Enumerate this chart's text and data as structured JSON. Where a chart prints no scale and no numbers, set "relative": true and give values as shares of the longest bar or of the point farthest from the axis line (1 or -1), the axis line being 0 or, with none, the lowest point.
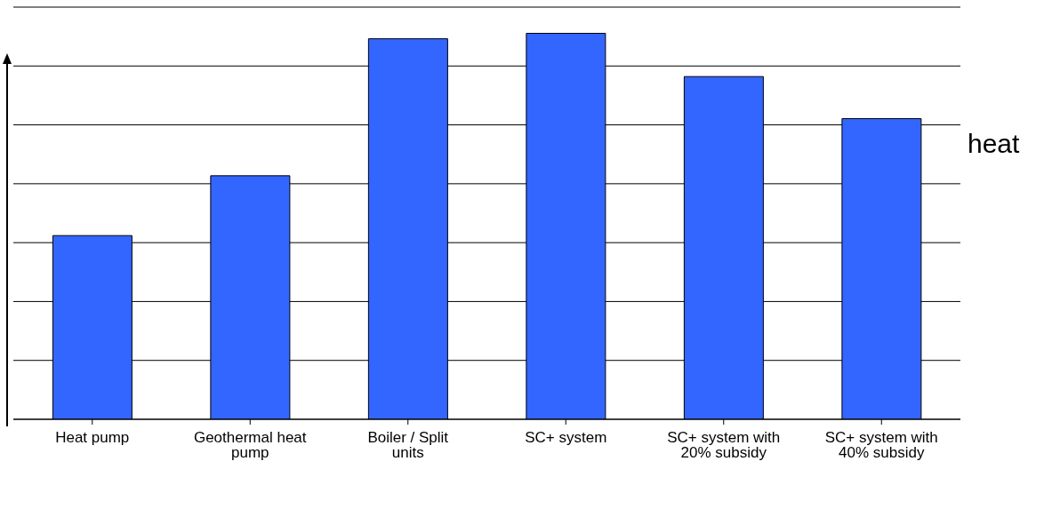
{
  "chart_data": {
    "type": "bar",
    "categories": [
      "Heat pump",
      "Geothermal heat pump",
      "Boiler / Split units",
      "SC+ system",
      "SC+ system with 20% subsidy",
      "SC+ system with 40% subsidy"
    ],
    "values": [
      0.476,
      0.631,
      0.986,
      1,
      0.888,
      0.779
    ],
    "color": "#3366ff",
    "relative": true,
    "grid": "y",
    "annotations": [
      "heat"
    ]
  }
}
